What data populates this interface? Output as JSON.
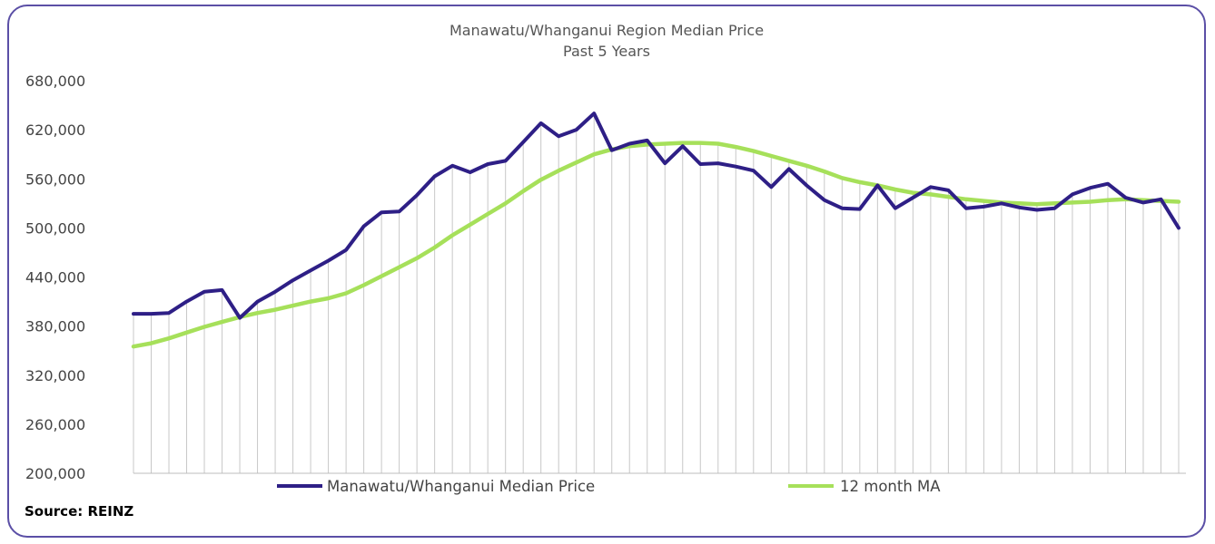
{
  "chart_data": {
    "type": "line",
    "title": "Manawatu/Whanganui Region  Median Price",
    "subtitle": "Past 5 Years",
    "ylim": [
      200000,
      680000
    ],
    "yticks": [
      "680,000",
      "620,000",
      "560,000",
      "500,000",
      "440,000",
      "380,000",
      "320,000",
      "260,000",
      "200,000"
    ],
    "ytick_values": [
      680000,
      620000,
      560000,
      500000,
      440000,
      380000,
      320000,
      260000,
      200000
    ],
    "x_count": 60,
    "grid": "vertical",
    "legend_position": "bottom",
    "series": [
      {
        "name": "Manawatu/Whanganui Median Price",
        "color": "#2e1f86",
        "values": [
          395000,
          395000,
          396000,
          410000,
          422000,
          424000,
          390000,
          410000,
          422000,
          436000,
          448000,
          460000,
          473000,
          502000,
          519000,
          520000,
          540000,
          563000,
          576000,
          568000,
          578000,
          582000,
          605000,
          628000,
          612000,
          620000,
          640000,
          595000,
          603000,
          607000,
          579000,
          600000,
          578000,
          579000,
          575000,
          570000,
          550000,
          572000,
          552000,
          534000,
          524000,
          523000,
          552000,
          524000,
          537000,
          550000,
          546000,
          524000,
          526000,
          530000,
          525000,
          522000,
          524000,
          541000,
          549000,
          554000,
          537000,
          531000,
          535000,
          500000
        ]
      },
      {
        "name": "12 month MA",
        "color": "#a6e05a",
        "values": [
          355000,
          359000,
          365000,
          372000,
          379000,
          385000,
          391000,
          396000,
          400000,
          405000,
          410000,
          414000,
          420000,
          430000,
          441000,
          452000,
          463000,
          476000,
          491000,
          504000,
          517000,
          530000,
          545000,
          559000,
          570000,
          580000,
          590000,
          596000,
          600000,
          602000,
          603000,
          604000,
          604000,
          603000,
          599000,
          594000,
          588000,
          582000,
          576000,
          569000,
          561000,
          556000,
          552000,
          547000,
          543000,
          541000,
          538000,
          535000,
          533000,
          531000,
          530000,
          529000,
          530000,
          531000,
          532000,
          534000,
          535000,
          534000,
          533000,
          532000
        ]
      }
    ]
  },
  "footer": {
    "source": "Source: REINZ"
  }
}
